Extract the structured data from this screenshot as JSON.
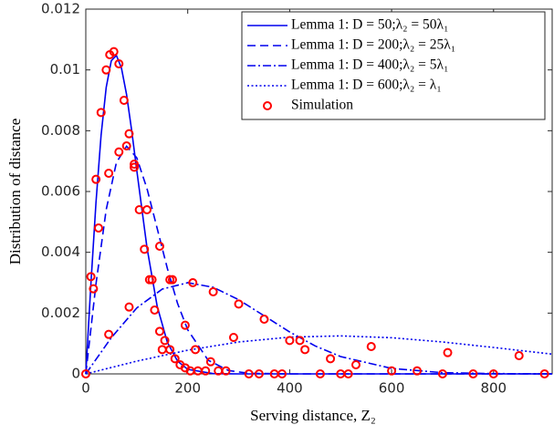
{
  "chart_data": {
    "type": "line",
    "xlabel": "Serving distance, Z₂",
    "ylabel": "Distribution of distance",
    "xlim": [
      0,
      915
    ],
    "xticks": [
      0,
      200,
      400,
      600,
      800
    ],
    "ylim": [
      0,
      0.012
    ],
    "yticks": [
      0,
      0.002,
      0.004,
      0.006,
      0.008,
      0.01,
      0.012
    ],
    "legend": "northeast",
    "series": [
      {
        "name": "Lemma 1:  D = 50;λ₂ = 50λ₁",
        "color": "#0000ee",
        "style": "solid",
        "x": [
          0,
          10,
          20,
          30,
          40,
          50,
          60,
          70,
          80,
          90,
          100,
          120,
          140,
          160,
          180,
          200,
          250,
          300,
          915
        ],
        "values": [
          0,
          0.00295,
          0.00564,
          0.00785,
          0.00942,
          0.0103,
          0.01048,
          0.01006,
          0.00919,
          0.00801,
          0.0067,
          0.00416,
          0.00223,
          0.00104,
          0.00042,
          0.00015,
          1e-05,
          0,
          0
        ]
      },
      {
        "name": "Lemma 1:  D = 200;λ₂ = 25λ₁",
        "color": "#0000ee",
        "style": "dashed",
        "x": [
          0,
          20,
          40,
          60,
          80,
          100,
          120,
          140,
          160,
          180,
          200,
          240,
          280,
          320,
          400,
          915
        ],
        "values": [
          0,
          0.00296,
          0.0054,
          0.00695,
          0.00749,
          0.00711,
          0.0061,
          0.00479,
          0.00347,
          0.00232,
          0.00145,
          0.00045,
          0.00011,
          2e-05,
          0,
          0
        ]
      },
      {
        "name": "Lemma 1:  D = 400;λ₂ = 5λ₁",
        "color": "#0000ee",
        "style": "dashdot",
        "x": [
          0,
          50,
          100,
          150,
          200,
          250,
          300,
          350,
          400,
          450,
          500,
          600,
          700,
          800,
          915
        ],
        "values": [
          0,
          0.00119,
          0.00217,
          0.00279,
          0.003,
          0.00285,
          0.00244,
          0.00191,
          0.00138,
          0.00092,
          0.00057,
          0.00018,
          4e-05,
          1e-05,
          0
        ]
      },
      {
        "name": "Lemma 1:  D = 600;λ₂ = λ₁",
        "color": "#0000ee",
        "style": "dotted",
        "x": [
          0,
          100,
          200,
          300,
          400,
          500,
          600,
          700,
          800,
          915
        ],
        "values": [
          0,
          0.00042,
          0.00078,
          0.00105,
          0.00121,
          0.00125,
          0.00119,
          0.00105,
          0.00087,
          0.00065
        ]
      },
      {
        "name": "Simulation",
        "color": "#ff0000",
        "style": "marker",
        "x": [
          0,
          10,
          20,
          30,
          40,
          47,
          55,
          65,
          75,
          85,
          95,
          105,
          115,
          125,
          135,
          145,
          155,
          165,
          175,
          185,
          195,
          205,
          15,
          25,
          45,
          65,
          80,
          95,
          120,
          145,
          165,
          195,
          215,
          245,
          45,
          85,
          130,
          170,
          210,
          250,
          300,
          350,
          400,
          430,
          480,
          530,
          600,
          650,
          150,
          290,
          420,
          560,
          710,
          850,
          220,
          235,
          260,
          275,
          320,
          340,
          370,
          385,
          460,
          500,
          515,
          700,
          760,
          800,
          900
        ],
        "values": [
          0,
          0.0032,
          0.0064,
          0.0086,
          0.01,
          0.0105,
          0.0106,
          0.0102,
          0.009,
          0.0079,
          0.0069,
          0.0054,
          0.0041,
          0.0031,
          0.0021,
          0.0014,
          0.0011,
          0.0008,
          0.0005,
          0.0003,
          0.0002,
          0.0001,
          0.0028,
          0.0048,
          0.0066,
          0.0073,
          0.0075,
          0.0068,
          0.0054,
          0.0042,
          0.0031,
          0.0016,
          0.0008,
          0.0004,
          0.0013,
          0.0022,
          0.0031,
          0.0031,
          0.003,
          0.0027,
          0.0023,
          0.0018,
          0.0011,
          0.0008,
          0.0005,
          0.0003,
          0.0001,
          0.0001,
          0.0008,
          0.0012,
          0.0011,
          0.0009,
          0.0007,
          0.0006,
          0.0001,
          0.0001,
          0.0001,
          0.0001,
          0,
          0,
          0,
          0,
          0,
          0,
          0,
          0,
          0,
          0,
          0
        ]
      }
    ]
  }
}
